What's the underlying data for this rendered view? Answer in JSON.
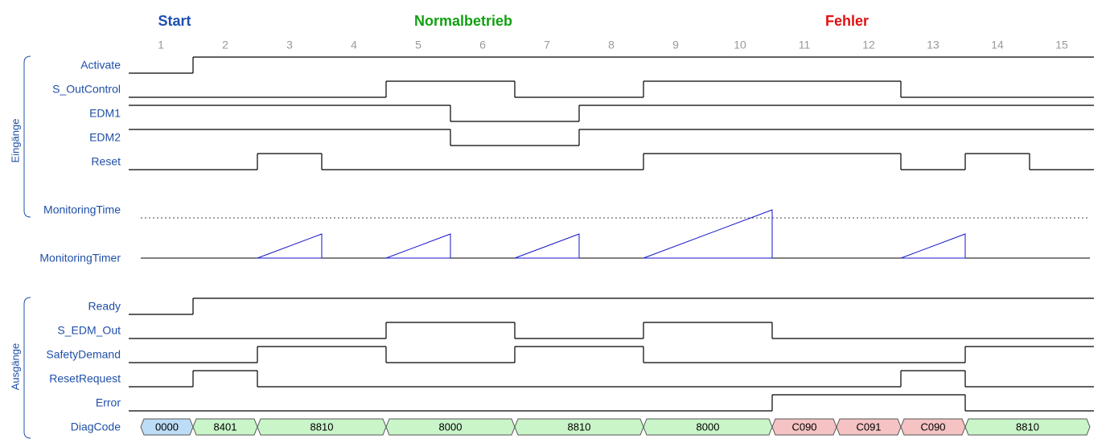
{
  "phases": [
    "Start",
    "Normalbetrieb",
    "Fehler"
  ],
  "columns": [
    1,
    2,
    3,
    4,
    5,
    6,
    7,
    8,
    9,
    10,
    11,
    12,
    13,
    14,
    15
  ],
  "inputs": {
    "label": "Eingänge",
    "signals": [
      {
        "name": "Activate",
        "levels": [
          0,
          1,
          1,
          1,
          1,
          1,
          1,
          1,
          1,
          1,
          1,
          1,
          1,
          1,
          1
        ]
      },
      {
        "name": "S_OutControl",
        "levels": [
          0,
          0,
          0,
          0,
          1,
          1,
          0,
          0,
          1,
          1,
          1,
          1,
          0,
          0,
          0
        ]
      },
      {
        "name": "EDM1",
        "levels": [
          1,
          1,
          1,
          1,
          1,
          0,
          0,
          1,
          1,
          1,
          1,
          1,
          1,
          1,
          1
        ]
      },
      {
        "name": "EDM2",
        "levels": [
          1,
          1,
          1,
          1,
          1,
          0,
          0,
          1,
          1,
          1,
          1,
          1,
          1,
          1,
          1
        ]
      },
      {
        "name": "Reset",
        "levels": [
          0,
          0,
          1,
          0,
          0,
          0,
          0,
          0,
          1,
          1,
          1,
          1,
          0,
          1,
          0
        ]
      }
    ]
  },
  "monitoring": {
    "time_label": "MonitoringTime",
    "timer_label": "MonitoringTimer",
    "ramps": [
      [
        3,
        3
      ],
      [
        5,
        5
      ],
      [
        7,
        7
      ],
      [
        9,
        10
      ],
      [
        13,
        13
      ]
    ]
  },
  "outputs": {
    "label": "Ausgänge",
    "signals": [
      {
        "name": "Ready",
        "levels": [
          0,
          1,
          1,
          1,
          1,
          1,
          1,
          1,
          1,
          1,
          1,
          1,
          1,
          1,
          1
        ]
      },
      {
        "name": "S_EDM_Out",
        "levels": [
          0,
          0,
          0,
          0,
          1,
          1,
          0,
          0,
          1,
          1,
          0,
          0,
          0,
          0,
          0
        ]
      },
      {
        "name": "SafetyDemand",
        "levels": [
          0,
          0,
          1,
          1,
          0,
          0,
          1,
          1,
          0,
          0,
          0,
          0,
          0,
          1,
          1
        ]
      },
      {
        "name": "ResetRequest",
        "levels": [
          0,
          1,
          0,
          0,
          0,
          0,
          0,
          0,
          0,
          0,
          0,
          0,
          1,
          0,
          0
        ]
      },
      {
        "name": "Error",
        "levels": [
          0,
          0,
          0,
          0,
          0,
          0,
          0,
          0,
          0,
          0,
          1,
          1,
          1,
          0,
          0
        ]
      }
    ]
  },
  "diag": {
    "label": "DiagCode",
    "codes": [
      {
        "code": "0000",
        "from": 1,
        "to": 1,
        "color": "#bddcf5"
      },
      {
        "code": "8401",
        "from": 2,
        "to": 2,
        "color": "#c9f5c9"
      },
      {
        "code": "8810",
        "from": 3,
        "to": 4,
        "color": "#c9f5c9"
      },
      {
        "code": "8000",
        "from": 5,
        "to": 6,
        "color": "#c9f5c9"
      },
      {
        "code": "8810",
        "from": 7,
        "to": 8,
        "color": "#c9f5c9"
      },
      {
        "code": "8000",
        "from": 9,
        "to": 10,
        "color": "#c9f5c9"
      },
      {
        "code": "C090",
        "from": 11,
        "to": 11,
        "color": "#f5c3c3"
      },
      {
        "code": "C091",
        "from": 12,
        "to": 12,
        "color": "#f5c3c3"
      },
      {
        "code": "C090",
        "from": 13,
        "to": 13,
        "color": "#f5c3c3"
      },
      {
        "code": "8810",
        "from": 14,
        "to": 15,
        "color": "#c9f5c9"
      }
    ]
  }
}
